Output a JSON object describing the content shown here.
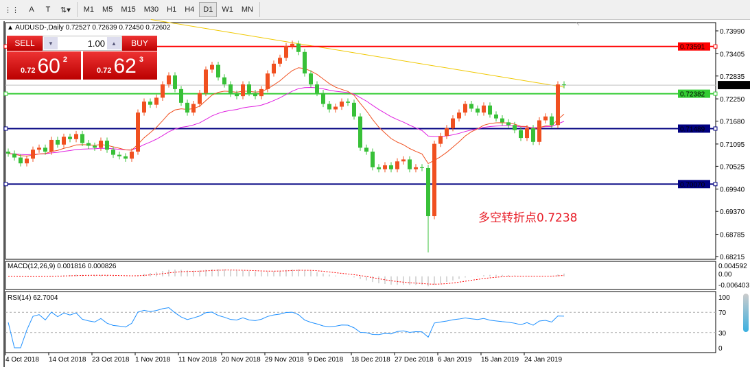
{
  "toolbar": {
    "tools": [
      {
        "name": "grid-icon",
        "glyph": "⋮⋮"
      },
      {
        "name": "text-icon",
        "glyph": "A"
      },
      {
        "name": "text-label-icon",
        "glyph": "T"
      },
      {
        "name": "arrows-icon",
        "glyph": "⇅▾"
      }
    ],
    "timeframes": [
      "M1",
      "M5",
      "M15",
      "M30",
      "H1",
      "H4",
      "D1",
      "W1",
      "MN"
    ],
    "active": "D1"
  },
  "chart": {
    "title": "AUDUSD-,Daily",
    "ohlc": "0.72527 0.72639 0.72450 0.72602"
  },
  "trade": {
    "sell": "SELL",
    "buy": "BUY",
    "qty": "1.00",
    "sell_prefix": "0.72",
    "sell_big": "60",
    "sell_sup": "2",
    "buy_prefix": "0.72",
    "buy_big": "62",
    "buy_sup": "3"
  },
  "annotation": "多空转折点0.7238",
  "colors": {
    "up": "#f05020",
    "down": "#38c038",
    "resistance": "#ff0000",
    "pivot": "#33cc33",
    "support": "#000080",
    "ma_fast": "#f05020",
    "ma_slow": "#e020e0",
    "ma_long": "#f0c800",
    "rsi": "#1e90ff",
    "macd_signal": "#ff0000"
  },
  "chart_data": {
    "type": "candlestick",
    "price_ticks": [
      "0.73990",
      "0.73405",
      "0.72835",
      "0.72250",
      "0.71680",
      "0.71095",
      "0.70525",
      "0.69940",
      "0.69370",
      "0.68785",
      "0.68215"
    ],
    "ylim": [
      0.68215,
      0.7399
    ],
    "closes": [
      0.7085,
      0.7075,
      0.706,
      0.7072,
      0.7095,
      0.71,
      0.709,
      0.712,
      0.7108,
      0.7128,
      0.7122,
      0.7135,
      0.7112,
      0.7105,
      0.71,
      0.7118,
      0.7095,
      0.7082,
      0.7078,
      0.7072,
      0.709,
      0.719,
      0.7218,
      0.721,
      0.7228,
      0.7262,
      0.7285,
      0.725,
      0.7215,
      0.719,
      0.7212,
      0.724,
      0.73,
      0.7312,
      0.728,
      0.7262,
      0.7238,
      0.7232,
      0.7262,
      0.724,
      0.7232,
      0.725,
      0.729,
      0.7315,
      0.733,
      0.736,
      0.7366,
      0.7345,
      0.729,
      0.7262,
      0.724,
      0.7212,
      0.7198,
      0.7205,
      0.7218,
      0.7215,
      0.718,
      0.71,
      0.709,
      0.705,
      0.7045,
      0.7055,
      0.7045,
      0.7065,
      0.707,
      0.7045,
      0.705,
      0.7048,
      0.6925,
      0.711,
      0.713,
      0.715,
      0.7175,
      0.719,
      0.7212,
      0.72,
      0.719,
      0.7208,
      0.7185,
      0.7175,
      0.7165,
      0.7158,
      0.7145,
      0.7125,
      0.715,
      0.7115,
      0.717,
      0.718,
      0.7158,
      0.7262,
      0.726
    ],
    "extreme_low": {
      "index": 68,
      "low": 0.6832
    },
    "hlines": [
      {
        "price": 0.73591,
        "label": "0.73591",
        "color": "#ff0000"
      },
      {
        "price": 0.72382,
        "label": "0.72382",
        "color": "#33cc33"
      },
      {
        "price": 0.71489,
        "label": "0.71489",
        "color": "#000080"
      },
      {
        "price": 0.7007,
        "label": "0.70070",
        "color": "#000080"
      }
    ],
    "current": {
      "price": 0.72602,
      "label": "0.72602"
    },
    "long_ma": {
      "from_price": 0.7428,
      "to_price": 0.7255
    },
    "macd": {
      "label": "MACD(12,26,9) 0.001816 0.000826",
      "ticks": [
        "0.004592",
        "0.00",
        "-0.006403"
      ],
      "range": [
        -0.006403,
        0.004592
      ]
    },
    "rsi": {
      "label": "RSI(14) 62.7004",
      "ticks": [
        "100",
        "70",
        "30",
        "0"
      ],
      "levels": [
        70,
        30
      ]
    },
    "x_ticks": [
      "4 Oct 2018",
      "14 Oct 2018",
      "23 Oct 2018",
      "1 Nov 2018",
      "11 Nov 2018",
      "20 Nov 2018",
      "29 Nov 2018",
      "9 Dec 2018",
      "18 Dec 2018",
      "27 Dec 2018",
      "6 Jan 2019",
      "15 Jan 2019",
      "24 Jan 2019"
    ]
  }
}
